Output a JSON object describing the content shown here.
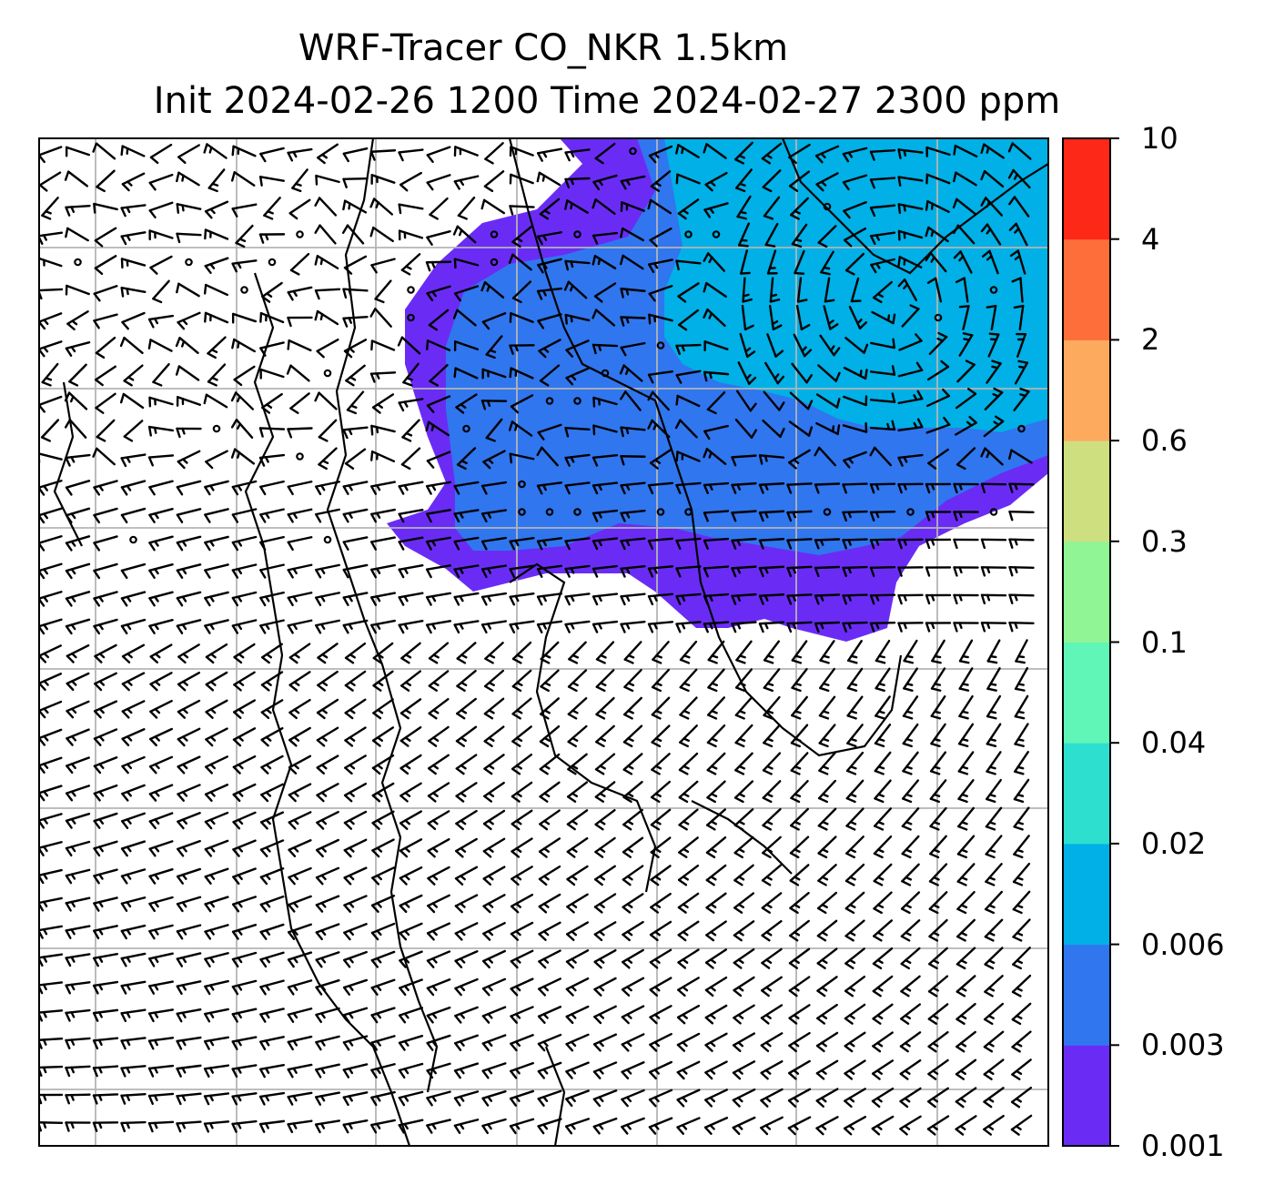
{
  "title": {
    "line1": "WRF-Tracer CO_NKR 1.5km",
    "line2": "Init 2024-02-26 1200 Time 2024-02-27 2300 ppm"
  },
  "colorbar": {
    "levels": [
      "0.001",
      "0.003",
      "0.006",
      "0.02",
      "0.04",
      "0.1",
      "0.3",
      "0.6",
      "2",
      "4",
      "10"
    ],
    "colors": [
      "#6a2cf5",
      "#3076ee",
      "#00b0e6",
      "#2ddfcf",
      "#5ff6b8",
      "#8ff595",
      "#cedf80",
      "#fdaa5e",
      "#fe6e3a",
      "#fd2817"
    ]
  },
  "map": {
    "grid_color": "#b4b4b4",
    "land_outline": "coastline-and-borders",
    "overlay": "wind-barbs",
    "plume": "tracer-concentration"
  }
}
